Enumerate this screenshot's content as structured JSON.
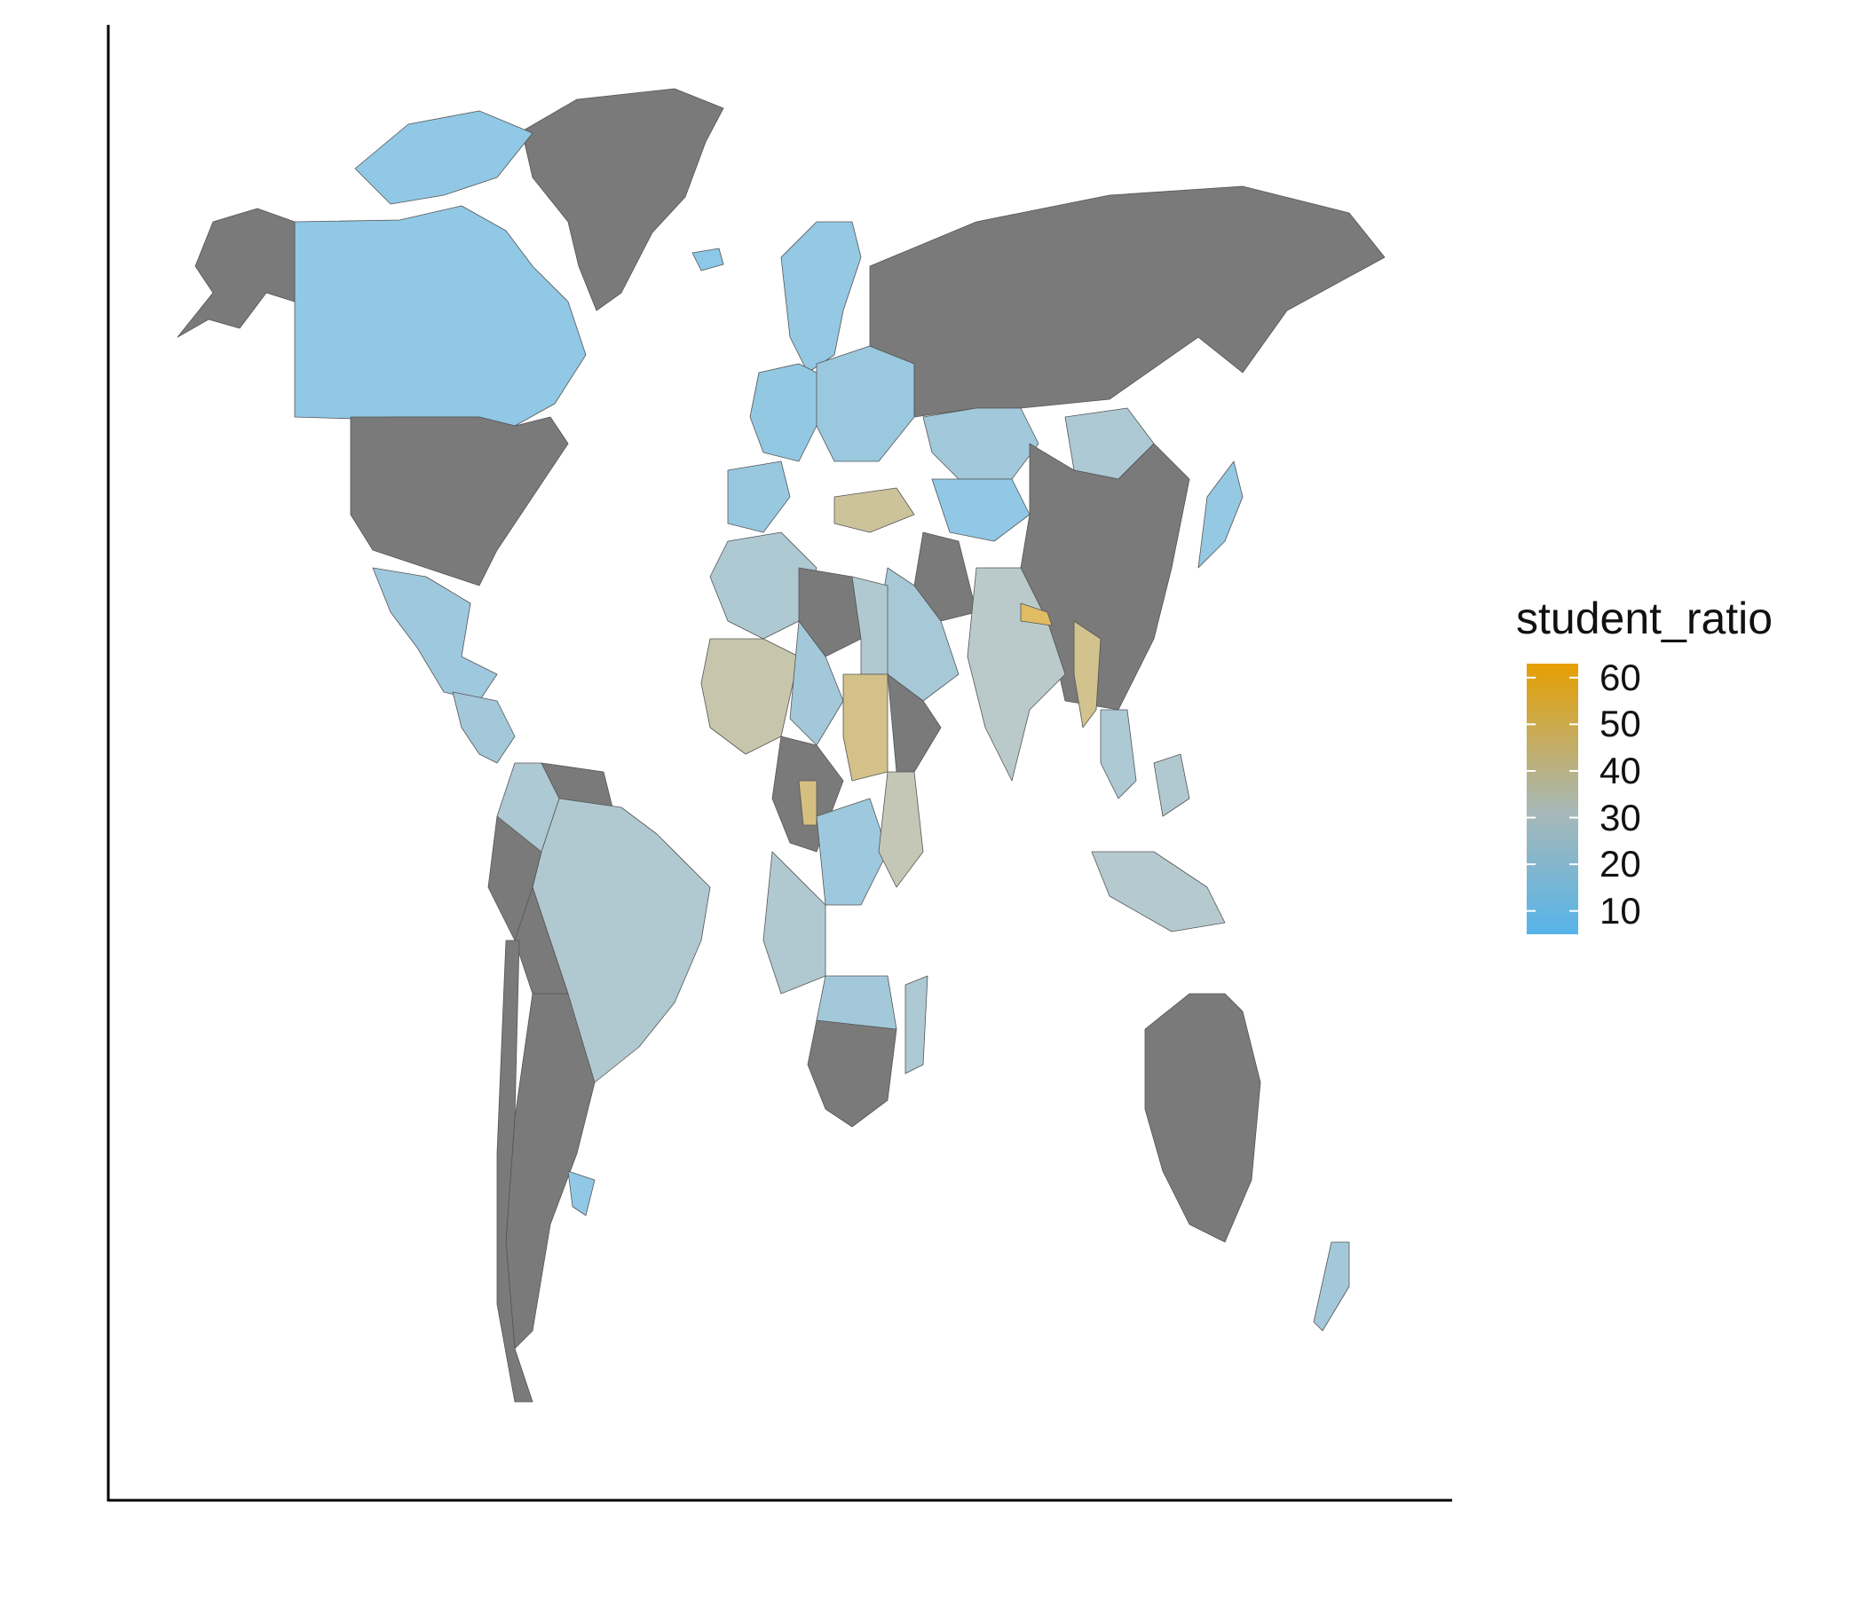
{
  "legend": {
    "title": "student_ratio",
    "ticks": [
      {
        "value": 10,
        "label": "10"
      },
      {
        "value": 20,
        "label": "20"
      },
      {
        "value": 30,
        "label": "30"
      },
      {
        "value": 40,
        "label": "40"
      },
      {
        "value": 50,
        "label": "50"
      },
      {
        "value": 60,
        "label": "60"
      }
    ],
    "range": [
      5,
      63
    ],
    "color_low": "#56B4E9",
    "color_mid": "#A6B8B8",
    "color_high": "#E69F00"
  },
  "colors": {
    "no_data": "#7a7a7a",
    "ocean": "#ffffff",
    "axis": "#000000",
    "border": "#555555"
  },
  "regions": [
    {
      "name": "Greenland",
      "value": null
    },
    {
      "name": "Canada",
      "value": 12
    },
    {
      "name": "Arctic Islands",
      "value": 12
    },
    {
      "name": "Alaska",
      "value": null
    },
    {
      "name": "United States",
      "value": null
    },
    {
      "name": "Mexico",
      "value": 18
    },
    {
      "name": "Central America",
      "value": 20
    },
    {
      "name": "Colombia",
      "value": 24
    },
    {
      "name": "Venezuela",
      "value": null
    },
    {
      "name": "Brazil",
      "value": 26
    },
    {
      "name": "Peru",
      "value": null
    },
    {
      "name": "Bolivia",
      "value": null
    },
    {
      "name": "Argentina",
      "value": null
    },
    {
      "name": "Chile",
      "value": null
    },
    {
      "name": "Uruguay",
      "value": 12
    },
    {
      "name": "Iceland",
      "value": 10
    },
    {
      "name": "Scandinavia",
      "value": 14
    },
    {
      "name": "Western Europe",
      "value": 13
    },
    {
      "name": "Eastern Europe",
      "value": 16
    },
    {
      "name": "Iberia",
      "value": 15
    },
    {
      "name": "Russia",
      "value": null
    },
    {
      "name": "Kazakhstan",
      "value": 19
    },
    {
      "name": "Central Asia",
      "value": 12
    },
    {
      "name": "Mongolia",
      "value": 24
    },
    {
      "name": "China",
      "value": null
    },
    {
      "name": "Japan",
      "value": 14
    },
    {
      "name": "Turkey",
      "value": 42
    },
    {
      "name": "Iran",
      "value": null
    },
    {
      "name": "Middle East",
      "value": 22
    },
    {
      "name": "India",
      "value": 30
    },
    {
      "name": "Nepal",
      "value": 55
    },
    {
      "name": "Myanmar",
      "value": 45
    },
    {
      "name": "Southeast Asia",
      "value": 24
    },
    {
      "name": "Indonesia",
      "value": 28
    },
    {
      "name": "Philippines",
      "value": 26
    },
    {
      "name": "Australia",
      "value": null
    },
    {
      "name": "New Zealand",
      "value": 20
    },
    {
      "name": "North Africa",
      "value": 25
    },
    {
      "name": "Libya",
      "value": null
    },
    {
      "name": "Egypt",
      "value": 26
    },
    {
      "name": "West Africa",
      "value": 38
    },
    {
      "name": "Chad",
      "value": 20
    },
    {
      "name": "Sudan",
      "value": 46
    },
    {
      "name": "Horn of Africa",
      "value": null
    },
    {
      "name": "Central Africa",
      "value": null
    },
    {
      "name": "Cameroon",
      "value": 48
    },
    {
      "name": "DR Congo",
      "value": 18
    },
    {
      "name": "East Africa",
      "value": 36
    },
    {
      "name": "Angola",
      "value": 26
    },
    {
      "name": "Southern Africa",
      "value": 20
    },
    {
      "name": "South Africa",
      "value": null
    },
    {
      "name": "Madagascar",
      "value": 24
    }
  ]
}
